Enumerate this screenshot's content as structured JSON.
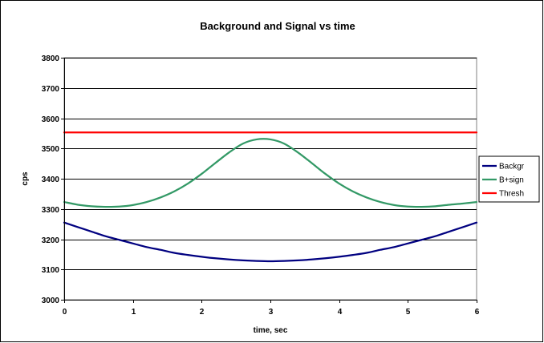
{
  "chart_data": {
    "type": "line",
    "title": "Background and Signal vs time",
    "xlabel": "time, sec",
    "ylabel": "cps",
    "xlim": [
      0,
      6
    ],
    "ylim": [
      3000,
      3800
    ],
    "x_ticks": [
      "0",
      "1",
      "2",
      "3",
      "4",
      "5",
      "6"
    ],
    "y_ticks": [
      "3000",
      "3100",
      "3200",
      "3300",
      "3400",
      "3500",
      "3600",
      "3700",
      "3800"
    ],
    "grid": "horizontal",
    "legend_position": "right",
    "series": [
      {
        "name": "Backgr",
        "color": "#000080",
        "x": [
          0,
          0.2,
          0.4,
          0.6,
          0.8,
          1.0,
          1.2,
          1.4,
          1.6,
          1.8,
          2.0,
          2.2,
          2.4,
          2.6,
          2.8,
          3.0,
          3.2,
          3.4,
          3.6,
          3.8,
          4.0,
          4.2,
          4.4,
          4.6,
          4.8,
          5.0,
          5.2,
          5.4,
          5.6,
          5.8,
          6.0
        ],
        "y": [
          3255,
          3240,
          3225,
          3210,
          3198,
          3186,
          3174,
          3165,
          3155,
          3148,
          3142,
          3137,
          3133,
          3130,
          3128,
          3127,
          3128,
          3130,
          3133,
          3137,
          3142,
          3148,
          3155,
          3165,
          3174,
          3186,
          3198,
          3210,
          3225,
          3240,
          3255
        ]
      },
      {
        "name": "B+sign",
        "color": "#339966",
        "x": [
          0,
          0.2,
          0.4,
          0.6,
          0.8,
          1.0,
          1.2,
          1.4,
          1.6,
          1.8,
          2.0,
          2.2,
          2.4,
          2.6,
          2.8,
          3.0,
          3.2,
          3.4,
          3.6,
          3.8,
          4.0,
          4.2,
          4.4,
          4.6,
          4.8,
          5.0,
          5.2,
          5.4,
          5.6,
          5.8,
          6.0
        ],
        "y": [
          3323,
          3314,
          3309,
          3307,
          3308,
          3313,
          3323,
          3338,
          3358,
          3384,
          3416,
          3452,
          3487,
          3516,
          3530,
          3530,
          3516,
          3487,
          3452,
          3416,
          3384,
          3358,
          3338,
          3323,
          3313,
          3308,
          3307,
          3309,
          3314,
          3318,
          3323
        ]
      },
      {
        "name": "Thresh",
        "color": "#ff0000",
        "x": [
          0,
          6
        ],
        "y": [
          3553,
          3553
        ]
      }
    ]
  }
}
